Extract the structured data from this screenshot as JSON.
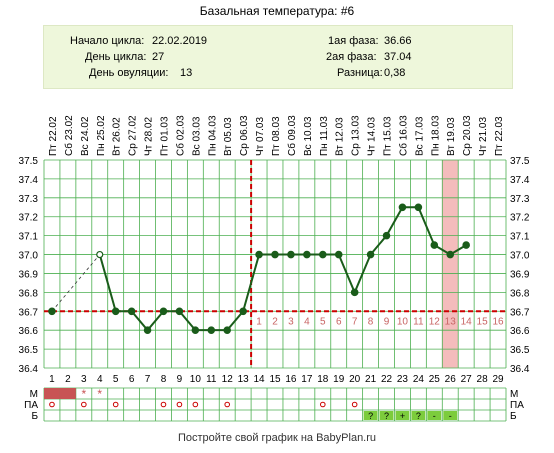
{
  "title": "Базальная температура: #6",
  "info": {
    "cycle_start_label": "Начало цикла:",
    "cycle_start": "22.02.2019",
    "cycle_day_label": "День цикла:",
    "cycle_day": "27",
    "ovulation_day_label": "День овуляции:",
    "ovulation_day": "13",
    "phase1_label": "1ая фаза:",
    "phase1": "36.66",
    "phase2_label": "2ая фаза:",
    "phase2": "37.04",
    "diff_label": "Разница:",
    "diff": "0,38"
  },
  "footer": "Постройте свой график на BabyPlan.ru",
  "colors": {
    "line": "#1a5c1a",
    "grid": "#4caf50",
    "coverline": "#cc0000",
    "highlight": "#f4bcbc",
    "menstruation": "#c85454",
    "test_box": "#7ccc3c",
    "info_bg": "#eef7db"
  },
  "chart_data": {
    "type": "line",
    "title": "Базальная температура: #6",
    "ylim": [
      36.4,
      37.5
    ],
    "yticks": [
      "37.5",
      "37.4",
      "37.3",
      "37.2",
      "37.1",
      "37.0",
      "36.9",
      "36.8",
      "36.7",
      "36.6",
      "36.5",
      "36.4"
    ],
    "days": [
      "1",
      "2",
      "3",
      "4",
      "5",
      "6",
      "7",
      "8",
      "9",
      "10",
      "11",
      "12",
      "13",
      "14",
      "15",
      "16",
      "17",
      "18",
      "19",
      "20",
      "21",
      "22",
      "23",
      "24",
      "25",
      "26",
      "27",
      "28",
      "29"
    ],
    "dates": [
      "Пт 22.02",
      "Сб 23.02",
      "Вс 24.02",
      "Пн 25.02",
      "Вт 26.02",
      "Ср 27.02",
      "Чт 28.02",
      "Пт 01.03",
      "Сб 02.03",
      "Вс 03.03",
      "Пн 04.03",
      "Вт 05.03",
      "Ср 06.03",
      "Чт 07.03",
      "Пт 08.03",
      "Сб 09.03",
      "Вс 10.03",
      "Пн 11.03",
      "Вт 12.03",
      "Ср 13.03",
      "Чт 14.03",
      "Пт 15.03",
      "Сб 16.03",
      "Вс 17.03",
      "Пн 18.03",
      "Вт 19.03",
      "Ср 20.03",
      "Чт 21.03",
      "Пт 22.03"
    ],
    "series": [
      {
        "values": [
          36.7,
          null,
          null,
          37.0,
          36.7,
          36.7,
          36.6,
          36.7,
          36.7,
          36.6,
          36.6,
          36.6,
          36.7,
          37.0,
          37.0,
          37.0,
          37.0,
          37.0,
          37.0,
          36.8,
          37.0,
          37.1,
          37.25,
          37.25,
          37.05,
          37.0,
          37.05,
          null,
          null
        ]
      }
    ],
    "excluded_points": [
      37.0
    ],
    "coverline": 36.7,
    "ovulation_day": 13,
    "highlight_day": 26,
    "luteal_numbers": [
      "1",
      "2",
      "3",
      "4",
      "5",
      "6",
      "7",
      "8",
      "9",
      "10",
      "11",
      "12",
      "13",
      "14",
      "15",
      "16"
    ],
    "rows": {
      "labels": [
        "М",
        "ПА",
        "Б"
      ],
      "M_marks": [
        "fill",
        "fill",
        "*",
        "*"
      ],
      "PA_marks": [
        "1",
        "3",
        "5",
        "8",
        "9",
        "10",
        "12",
        "18",
        "20"
      ],
      "B_marks": {
        "21": "?",
        "22": "?",
        "23": "+",
        "24": "?",
        "25": "-",
        "26": "-"
      }
    }
  }
}
